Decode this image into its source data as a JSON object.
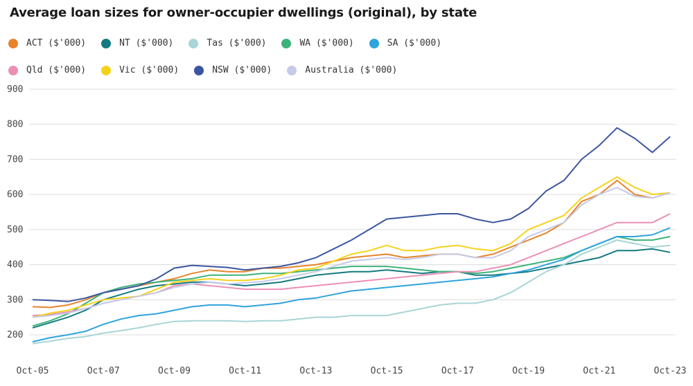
{
  "chart_data": {
    "type": "line",
    "title": "Average loan sizes for owner-occupier dwellings (original), by state",
    "xlabel": "",
    "ylabel": "",
    "ylim": [
      200,
      900
    ],
    "yticks": [
      "900",
      "800",
      "700",
      "600",
      "500",
      "400",
      "300",
      "200"
    ],
    "xticks": [
      "Oct-05",
      "Oct-07",
      "Oct-09",
      "Oct-11",
      "Oct-13",
      "Oct-15",
      "Oct-17",
      "Oct-19",
      "Oct-21",
      "Oct-23"
    ],
    "grid": true,
    "legend_position": "top",
    "x": [
      "Oct-05",
      "Apr-06",
      "Oct-06",
      "Apr-07",
      "Oct-07",
      "Apr-08",
      "Oct-08",
      "Apr-09",
      "Oct-09",
      "Apr-10",
      "Oct-10",
      "Apr-11",
      "Oct-11",
      "Apr-12",
      "Oct-12",
      "Apr-13",
      "Oct-13",
      "Apr-14",
      "Oct-14",
      "Apr-15",
      "Oct-15",
      "Apr-16",
      "Oct-16",
      "Apr-17",
      "Oct-17",
      "Apr-18",
      "Oct-18",
      "Apr-19",
      "Oct-19",
      "Apr-20",
      "Oct-20",
      "Apr-21",
      "Oct-21",
      "Apr-22",
      "Oct-22",
      "Apr-23",
      "Oct-23"
    ],
    "series": [
      {
        "name": "ACT ($'000)",
        "color": "#e8832a",
        "values": [
          280,
          278,
          285,
          300,
          320,
          330,
          340,
          350,
          360,
          375,
          385,
          380,
          380,
          390,
          390,
          395,
          400,
          410,
          420,
          425,
          430,
          420,
          425,
          430,
          430,
          420,
          430,
          450,
          470,
          490,
          520,
          580,
          600,
          640,
          600,
          590,
          605
        ]
      },
      {
        "name": "NT ($'000)",
        "color": "#137a7f",
        "values": [
          220,
          235,
          250,
          270,
          300,
          315,
          330,
          340,
          345,
          350,
          350,
          345,
          340,
          345,
          350,
          360,
          370,
          375,
          380,
          380,
          385,
          380,
          375,
          380,
          380,
          370,
          370,
          375,
          380,
          390,
          400,
          410,
          420,
          440,
          440,
          445,
          435
        ]
      },
      {
        "name": "Tas ($'000)",
        "color": "#a8d5d6",
        "values": [
          175,
          182,
          190,
          195,
          205,
          212,
          220,
          230,
          238,
          240,
          240,
          240,
          238,
          240,
          240,
          245,
          250,
          250,
          255,
          255,
          255,
          265,
          275,
          285,
          290,
          290,
          300,
          320,
          350,
          380,
          400,
          430,
          450,
          470,
          460,
          450,
          455
        ]
      },
      {
        "name": "WA ($'000)",
        "color": "#3cb37a",
        "values": [
          225,
          240,
          260,
          290,
          320,
          335,
          345,
          350,
          355,
          360,
          370,
          370,
          370,
          375,
          375,
          380,
          385,
          390,
          395,
          395,
          395,
          390,
          385,
          380,
          380,
          375,
          380,
          390,
          400,
          410,
          420,
          440,
          460,
          480,
          470,
          470,
          480
        ]
      },
      {
        "name": "SA ($'000)",
        "color": "#2ea3dc",
        "values": [
          180,
          192,
          200,
          210,
          230,
          245,
          255,
          260,
          270,
          280,
          285,
          285,
          280,
          285,
          290,
          300,
          305,
          315,
          325,
          330,
          335,
          340,
          345,
          350,
          355,
          360,
          365,
          375,
          385,
          400,
          415,
          440,
          460,
          480,
          480,
          485,
          505
        ]
      },
      {
        "name": "Qld ($'000)",
        "color": "#ec8fb5",
        "values": [
          255,
          258,
          265,
          275,
          290,
          300,
          310,
          320,
          340,
          345,
          340,
          335,
          330,
          330,
          330,
          335,
          340,
          345,
          350,
          355,
          360,
          365,
          370,
          375,
          380,
          380,
          390,
          400,
          420,
          440,
          460,
          480,
          500,
          520,
          520,
          520,
          545
        ]
      },
      {
        "name": "Vic ($'000)",
        "color": "#f5d21a",
        "values": [
          250,
          262,
          270,
          285,
          300,
          305,
          310,
          330,
          350,
          355,
          360,
          355,
          355,
          360,
          370,
          385,
          390,
          410,
          430,
          440,
          455,
          440,
          440,
          450,
          455,
          445,
          440,
          460,
          500,
          520,
          540,
          590,
          620,
          650,
          620,
          600,
          605
        ]
      },
      {
        "name": "NSW ($'000)",
        "color": "#3b55a0",
        "values": [
          300,
          298,
          295,
          305,
          320,
          330,
          340,
          360,
          390,
          398,
          395,
          392,
          385,
          390,
          395,
          405,
          420,
          445,
          470,
          500,
          530,
          535,
          540,
          545,
          545,
          530,
          520,
          530,
          560,
          610,
          640,
          700,
          740,
          790,
          760,
          720,
          765
        ]
      },
      {
        "name": "Australia ($'000)",
        "color": "#c5cae6",
        "values": [
          250,
          255,
          262,
          275,
          290,
          300,
          310,
          320,
          335,
          345,
          350,
          345,
          348,
          352,
          360,
          370,
          380,
          395,
          410,
          415,
          420,
          415,
          420,
          430,
          430,
          420,
          420,
          440,
          480,
          500,
          520,
          570,
          600,
          620,
          595,
          590,
          605
        ]
      }
    ]
  }
}
